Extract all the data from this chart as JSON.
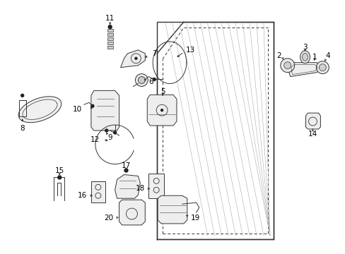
{
  "bg_color": "#ffffff",
  "fig_width": 4.89,
  "fig_height": 3.6,
  "dpi": 100,
  "lc": "#333333",
  "lw": 0.7,
  "fs": 7.5
}
